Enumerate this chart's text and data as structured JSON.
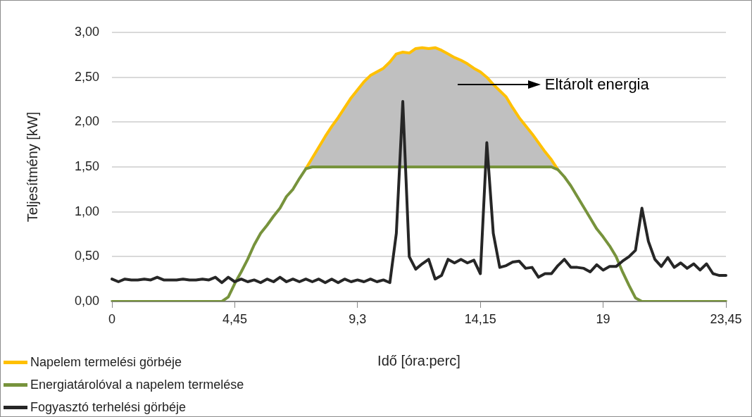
{
  "chart_data": {
    "type": "line",
    "ylabel": "Teljesítmény [kW]",
    "xlabel": "Idő [óra:perc]",
    "annotations": [
      "Eltárolt energia"
    ],
    "categories": [
      "0",
      null,
      null,
      null,
      null,
      null,
      null,
      null,
      null,
      null,
      null,
      null,
      null,
      null,
      null,
      null,
      null,
      null,
      null,
      "4,45",
      null,
      null,
      null,
      null,
      null,
      null,
      null,
      null,
      null,
      null,
      null,
      null,
      null,
      null,
      null,
      null,
      null,
      null,
      "9,3",
      null,
      null,
      null,
      null,
      null,
      null,
      null,
      null,
      null,
      null,
      null,
      null,
      null,
      null,
      null,
      null,
      null,
      null,
      "14,15",
      null,
      null,
      null,
      null,
      null,
      null,
      null,
      null,
      null,
      null,
      null,
      null,
      null,
      null,
      null,
      null,
      null,
      null,
      "19",
      null,
      null,
      null,
      null,
      null,
      null,
      null,
      null,
      null,
      null,
      null,
      null,
      null,
      null,
      null,
      null,
      null,
      null,
      "23,45"
    ],
    "ylim": [
      0,
      3
    ],
    "yticks": [
      {
        "value": 0,
        "label": "0,00"
      },
      {
        "value": 0.5,
        "label": "0,50"
      },
      {
        "value": 1,
        "label": "1,00"
      },
      {
        "value": 1.5,
        "label": "1,50"
      },
      {
        "value": 2,
        "label": "2,00"
      },
      {
        "value": 2.5,
        "label": "2,50"
      },
      {
        "value": 3,
        "label": "3,00"
      }
    ],
    "grid": "y",
    "legend": "bottom left",
    "marker": "none",
    "line_style": "solid",
    "series": [
      {
        "name": "Napelem termelési görbéje",
        "type": "area",
        "color": "#ffc000",
        "values": [
          null,
          null,
          null,
          null,
          null,
          null,
          null,
          null,
          null,
          null,
          null,
          null,
          null,
          null,
          null,
          null,
          null,
          null,
          null,
          null,
          null,
          null,
          null,
          null,
          null,
          null,
          null,
          null,
          null,
          null,
          1.48,
          1.6,
          1.72,
          1.84,
          1.95,
          2.05,
          2.16,
          2.27,
          2.36,
          2.45,
          2.52,
          2.56,
          2.6,
          2.67,
          2.76,
          2.78,
          2.77,
          2.82,
          2.83,
          2.82,
          2.83,
          2.8,
          2.76,
          2.72,
          2.69,
          2.65,
          2.6,
          2.56,
          2.5,
          2.42,
          2.35,
          2.28,
          2.16,
          2.05,
          1.96,
          1.87,
          1.77,
          1.67,
          1.58,
          1.47,
          null,
          null,
          null,
          null,
          null,
          null,
          null,
          null,
          null,
          null,
          null,
          null,
          null,
          null,
          null,
          null,
          null,
          null,
          null,
          null,
          null,
          null,
          null,
          null,
          null,
          null
        ]
      },
      {
        "name": "Energiatárolóval a napelem termelése",
        "color": "#77933c",
        "values": [
          0,
          0,
          0,
          0,
          0,
          0,
          0,
          0,
          0,
          0,
          0,
          0,
          0,
          0,
          0,
          0,
          0,
          0,
          0.05,
          0.2,
          0.33,
          0.47,
          0.63,
          0.76,
          0.85,
          0.95,
          1.04,
          1.17,
          1.25,
          1.37,
          1.48,
          1.5,
          1.5,
          1.5,
          1.5,
          1.5,
          1.5,
          1.5,
          1.5,
          1.5,
          1.5,
          1.5,
          1.5,
          1.5,
          1.5,
          1.5,
          1.5,
          1.5,
          1.5,
          1.5,
          1.5,
          1.5,
          1.5,
          1.5,
          1.5,
          1.5,
          1.5,
          1.5,
          1.5,
          1.5,
          1.5,
          1.5,
          1.5,
          1.5,
          1.5,
          1.5,
          1.5,
          1.5,
          1.5,
          1.47,
          1.39,
          1.29,
          1.17,
          1.05,
          0.93,
          0.81,
          0.72,
          0.62,
          0.5,
          0.33,
          0.18,
          0.04,
          0,
          0,
          0,
          0,
          0,
          0,
          0,
          0,
          0,
          0,
          0,
          0,
          0,
          0
        ]
      },
      {
        "name": "Fogyasztó terhelési görbéje",
        "color": "#262626",
        "values": [
          0.25,
          0.22,
          0.25,
          0.24,
          0.24,
          0.25,
          0.24,
          0.27,
          0.24,
          0.24,
          0.24,
          0.25,
          0.24,
          0.24,
          0.25,
          0.24,
          0.27,
          0.21,
          0.27,
          0.22,
          0.25,
          0.22,
          0.24,
          0.21,
          0.25,
          0.22,
          0.27,
          0.22,
          0.25,
          0.22,
          0.25,
          0.22,
          0.25,
          0.21,
          0.25,
          0.21,
          0.25,
          0.22,
          0.24,
          0.22,
          0.25,
          0.22,
          0.24,
          0.21,
          0.76,
          2.23,
          0.5,
          0.36,
          0.42,
          0.47,
          0.25,
          0.29,
          0.47,
          0.43,
          0.47,
          0.43,
          0.46,
          0.31,
          1.77,
          0.76,
          0.38,
          0.4,
          0.44,
          0.45,
          0.37,
          0.38,
          0.27,
          0.31,
          0.31,
          0.4,
          0.47,
          0.38,
          0.38,
          0.37,
          0.33,
          0.41,
          0.35,
          0.39,
          0.39,
          0.45,
          0.5,
          0.57,
          1.04,
          0.67,
          0.47,
          0.39,
          0.49,
          0.38,
          0.43,
          0.37,
          0.42,
          0.35,
          0.42,
          0.31,
          0.29,
          0.29
        ]
      }
    ]
  }
}
